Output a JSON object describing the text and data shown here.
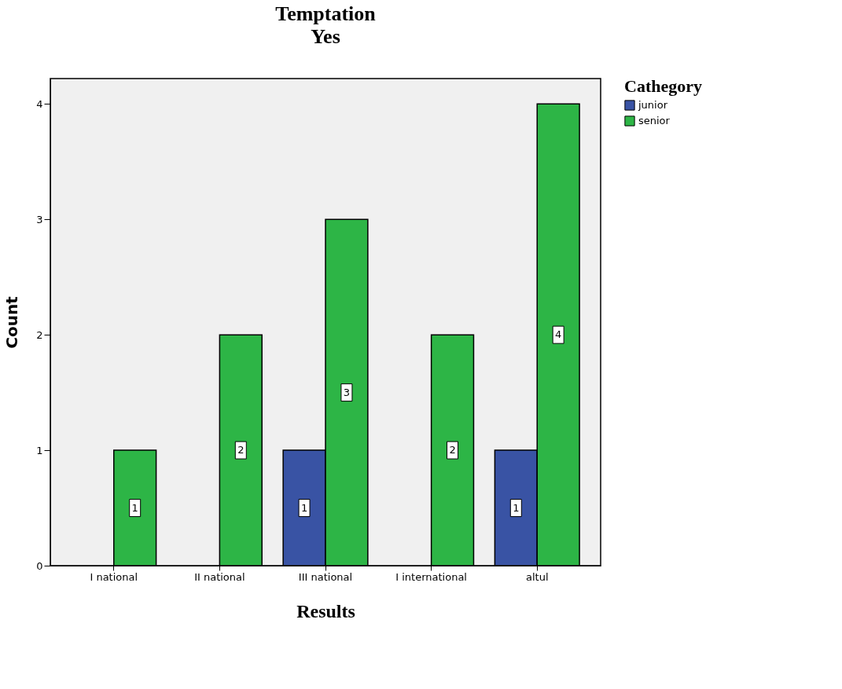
{
  "chart_data": {
    "type": "bar",
    "title": "Temptation",
    "subtitle": "Yes",
    "xlabel": "Results",
    "ylabel": "Count",
    "legend_title": "Cathegory",
    "categories": [
      "I national",
      "II national",
      "III national",
      "I international",
      "altul"
    ],
    "series": [
      {
        "name": "junior",
        "color": "#3953a4",
        "values": [
          null,
          null,
          1,
          null,
          1
        ]
      },
      {
        "name": "senior",
        "color": "#2db546",
        "values": [
          1,
          2,
          3,
          2,
          4
        ]
      }
    ],
    "ylim": [
      0,
      4.22
    ],
    "yticks": [
      0,
      1,
      2,
      3,
      4
    ],
    "grid": false,
    "legend": "top right",
    "data_labels": true
  }
}
